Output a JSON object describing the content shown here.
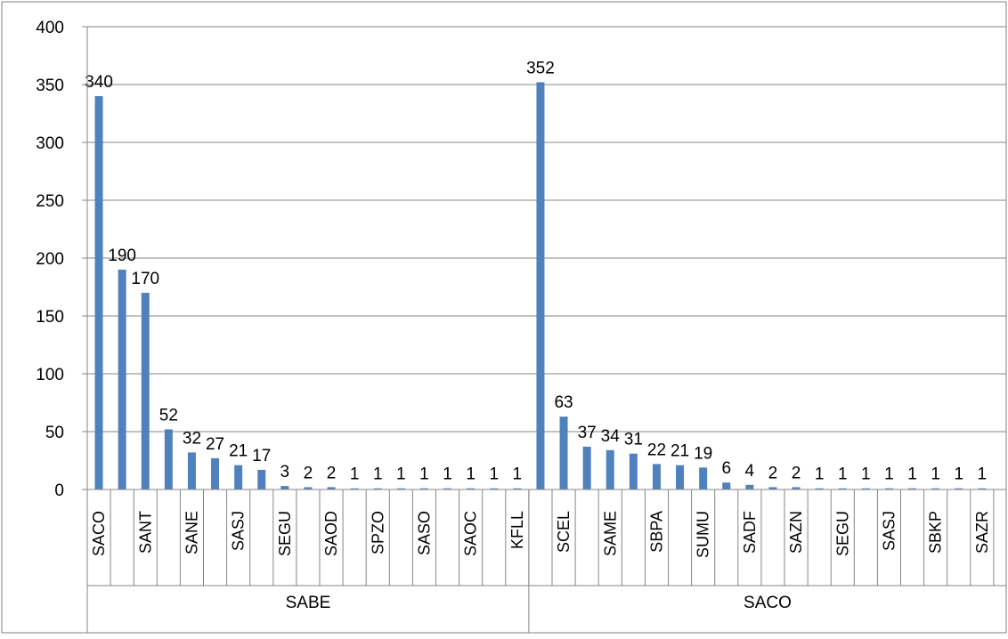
{
  "chart_data": {
    "type": "bar",
    "title": "",
    "xlabel": "",
    "ylabel": "",
    "ylim": [
      0,
      400
    ],
    "y_ticks": [
      0,
      50,
      100,
      150,
      200,
      250,
      300,
      350,
      400
    ],
    "grid": true,
    "legend": "none",
    "bar_color": "#4F81BD",
    "groups": [
      {
        "name": "SABE",
        "categories": [
          "SACO",
          "",
          "SANT",
          "",
          "SANE",
          "",
          "SASJ",
          "",
          "SEGU",
          "",
          "SAOD",
          "",
          "SPZO",
          "",
          "SASO",
          "",
          "SAOC",
          "",
          "KFLL"
        ],
        "values": [
          340,
          190,
          170,
          52,
          32,
          27,
          21,
          17,
          3,
          2,
          2,
          1,
          1,
          1,
          1,
          1,
          1,
          1,
          1
        ]
      },
      {
        "name": "SACO",
        "categories": [
          "",
          "SCEL",
          "",
          "SAME",
          "",
          "SBPA",
          "",
          "SUMU",
          "",
          "SADF",
          "",
          "SAZN",
          "",
          "SEGU",
          "",
          "SASJ",
          "",
          "SBKP",
          "",
          "SAZR"
        ],
        "values": [
          352,
          63,
          37,
          34,
          31,
          22,
          21,
          19,
          6,
          4,
          2,
          2,
          1,
          1,
          1,
          1,
          1,
          1,
          1,
          1
        ]
      }
    ]
  }
}
